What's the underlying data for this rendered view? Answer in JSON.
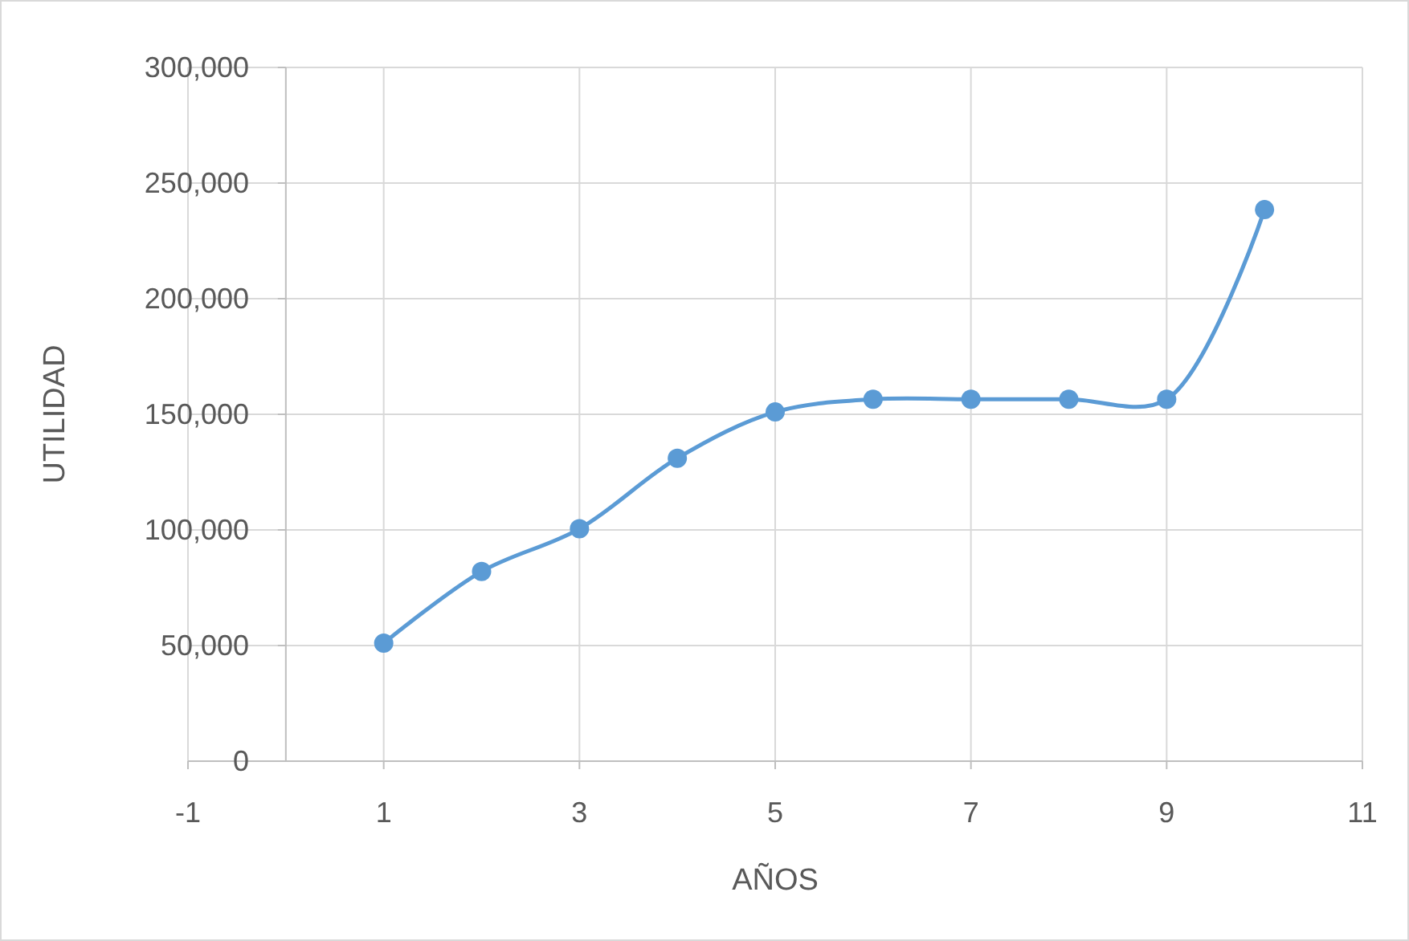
{
  "chart_data": {
    "type": "line",
    "xlabel": "AÑOS",
    "ylabel": "UTILIDAD",
    "x": [
      1,
      2,
      3,
      4,
      5,
      6,
      7,
      8,
      9,
      10
    ],
    "series": [
      {
        "color": "#5b9bd5",
        "values": [
          51000,
          82000,
          100500,
          131000,
          151000,
          156500,
          156500,
          156500,
          156500,
          238500
        ]
      }
    ],
    "xlim": [
      -1,
      11
    ],
    "xticks": [
      -1,
      1,
      3,
      5,
      7,
      9,
      11
    ],
    "ylim": [
      0,
      300000
    ],
    "yticks": [
      0,
      {
        "value": 50000,
        "label": "50,000"
      },
      {
        "value": 100000,
        "label": "100,000"
      },
      {
        "value": 150000,
        "label": "150,000"
      },
      {
        "value": 200000,
        "label": "200,000"
      },
      {
        "value": 250000,
        "label": "250,000"
      },
      {
        "value": 300000,
        "label": "300,000"
      }
    ],
    "grid": true,
    "marker": "circle",
    "line_style": "solid"
  }
}
